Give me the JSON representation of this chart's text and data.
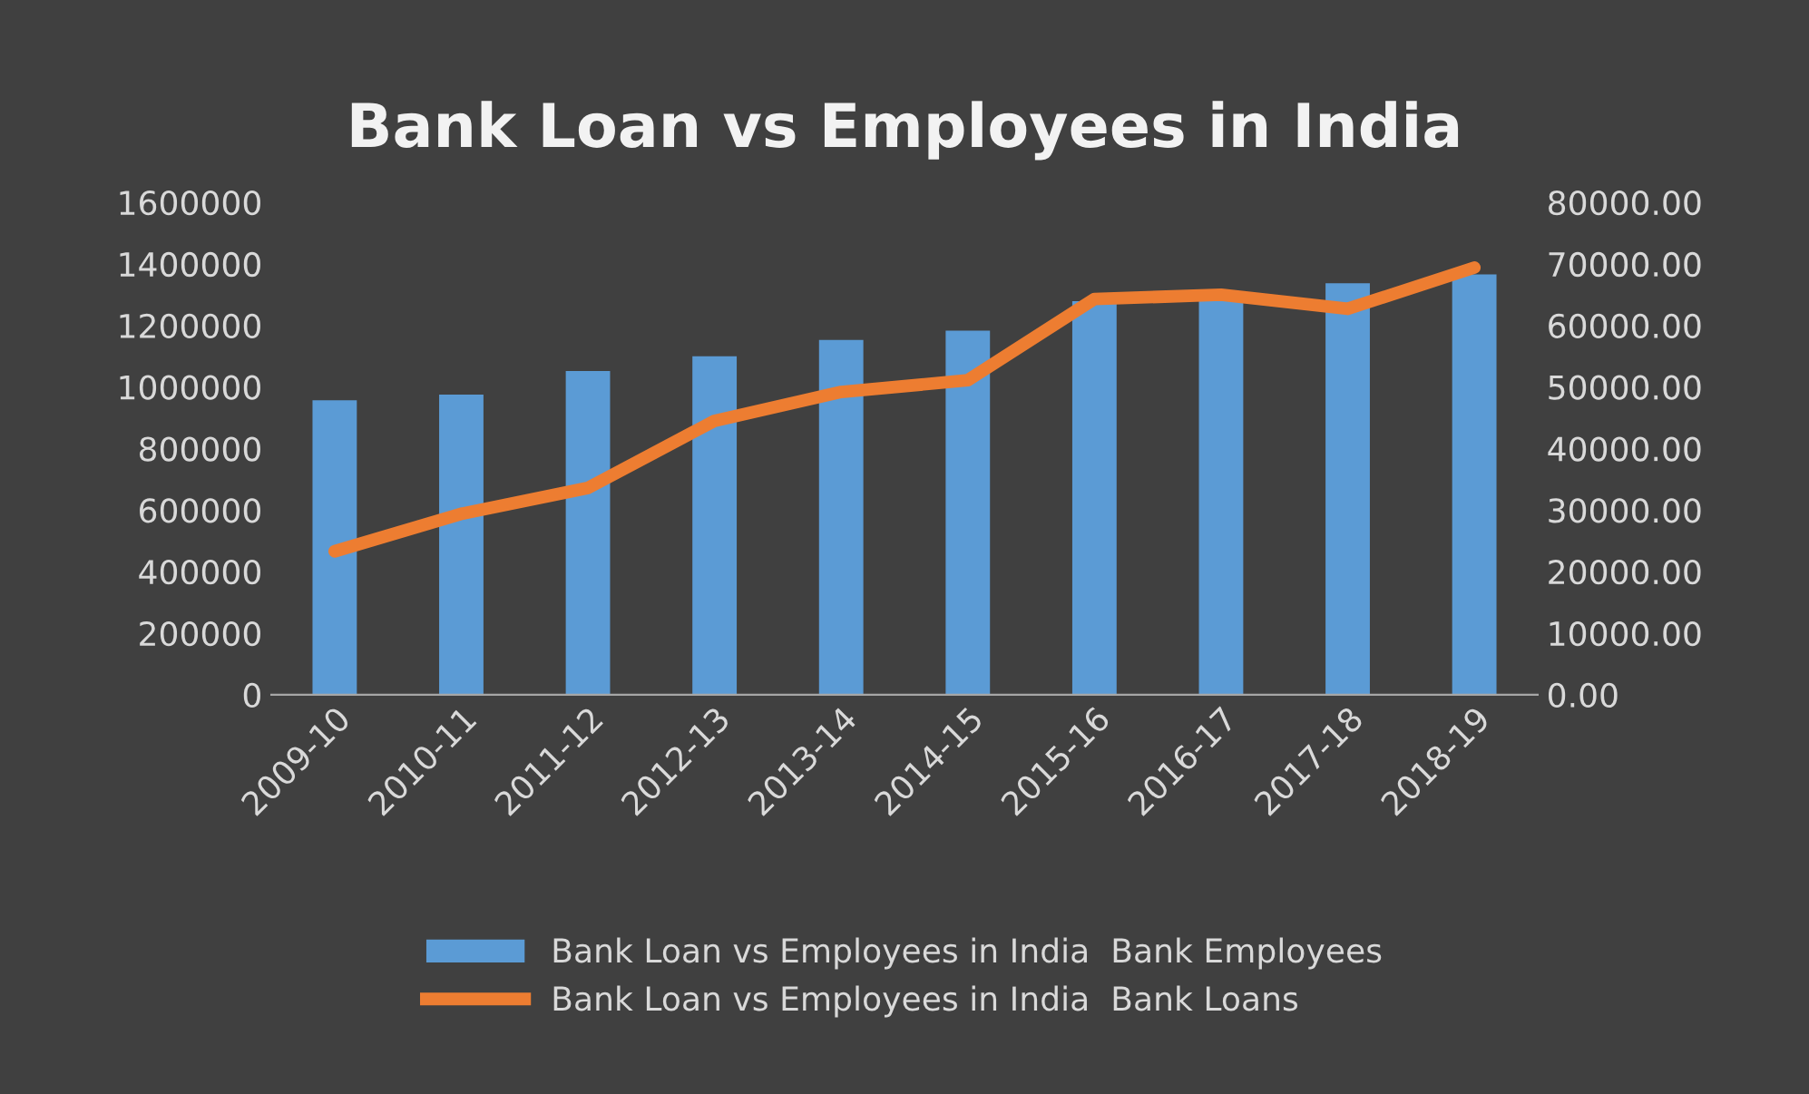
{
  "chart_data": {
    "type": "bar",
    "title": "Bank Loan vs Employees in India",
    "categories": [
      "2009-10",
      "2010-11",
      "2011-12",
      "2012-13",
      "2013-14",
      "2014-15",
      "2015-16",
      "2016-17",
      "2017-18",
      "2018-19"
    ],
    "series": [
      {
        "name": "Bank Loan vs Employees in India  Bank Employees",
        "color": "#5b9bd5",
        "values": [
          957000,
          975000,
          1052000,
          1100000,
          1153000,
          1183000,
          1279000,
          1290000,
          1337000,
          1366000
        ]
      },
      {
        "name": "Bank Loan vs Employees in India  Bank Loans",
        "type": "line",
        "axis": "y2",
        "color": "#ed7d31",
        "values": [
          23300,
          29400,
          33600,
          44500,
          49200,
          51100,
          64300,
          65000,
          62700,
          69400
        ]
      }
    ],
    "ylim": [
      0,
      1600000
    ],
    "yticks": [
      0,
      200000,
      400000,
      600000,
      800000,
      1000000,
      1200000,
      1400000,
      1600000
    ],
    "y2lim": [
      0,
      80000
    ],
    "y2ticks": [
      {
        "value": 0,
        "label": "0.00"
      },
      {
        "value": 10000,
        "label": "10000.00"
      },
      {
        "value": 20000,
        "label": "20000.00"
      },
      {
        "value": 30000,
        "label": "30000.00"
      },
      {
        "value": 40000,
        "label": "40000.00"
      },
      {
        "value": 50000,
        "label": "50000.00"
      },
      {
        "value": 60000,
        "label": "60000.00"
      },
      {
        "value": 70000,
        "label": "70000.00"
      },
      {
        "value": 80000,
        "label": "80000.00"
      }
    ],
    "grid": false,
    "legend": "bottom",
    "marker": "none",
    "line_style": "solid"
  }
}
